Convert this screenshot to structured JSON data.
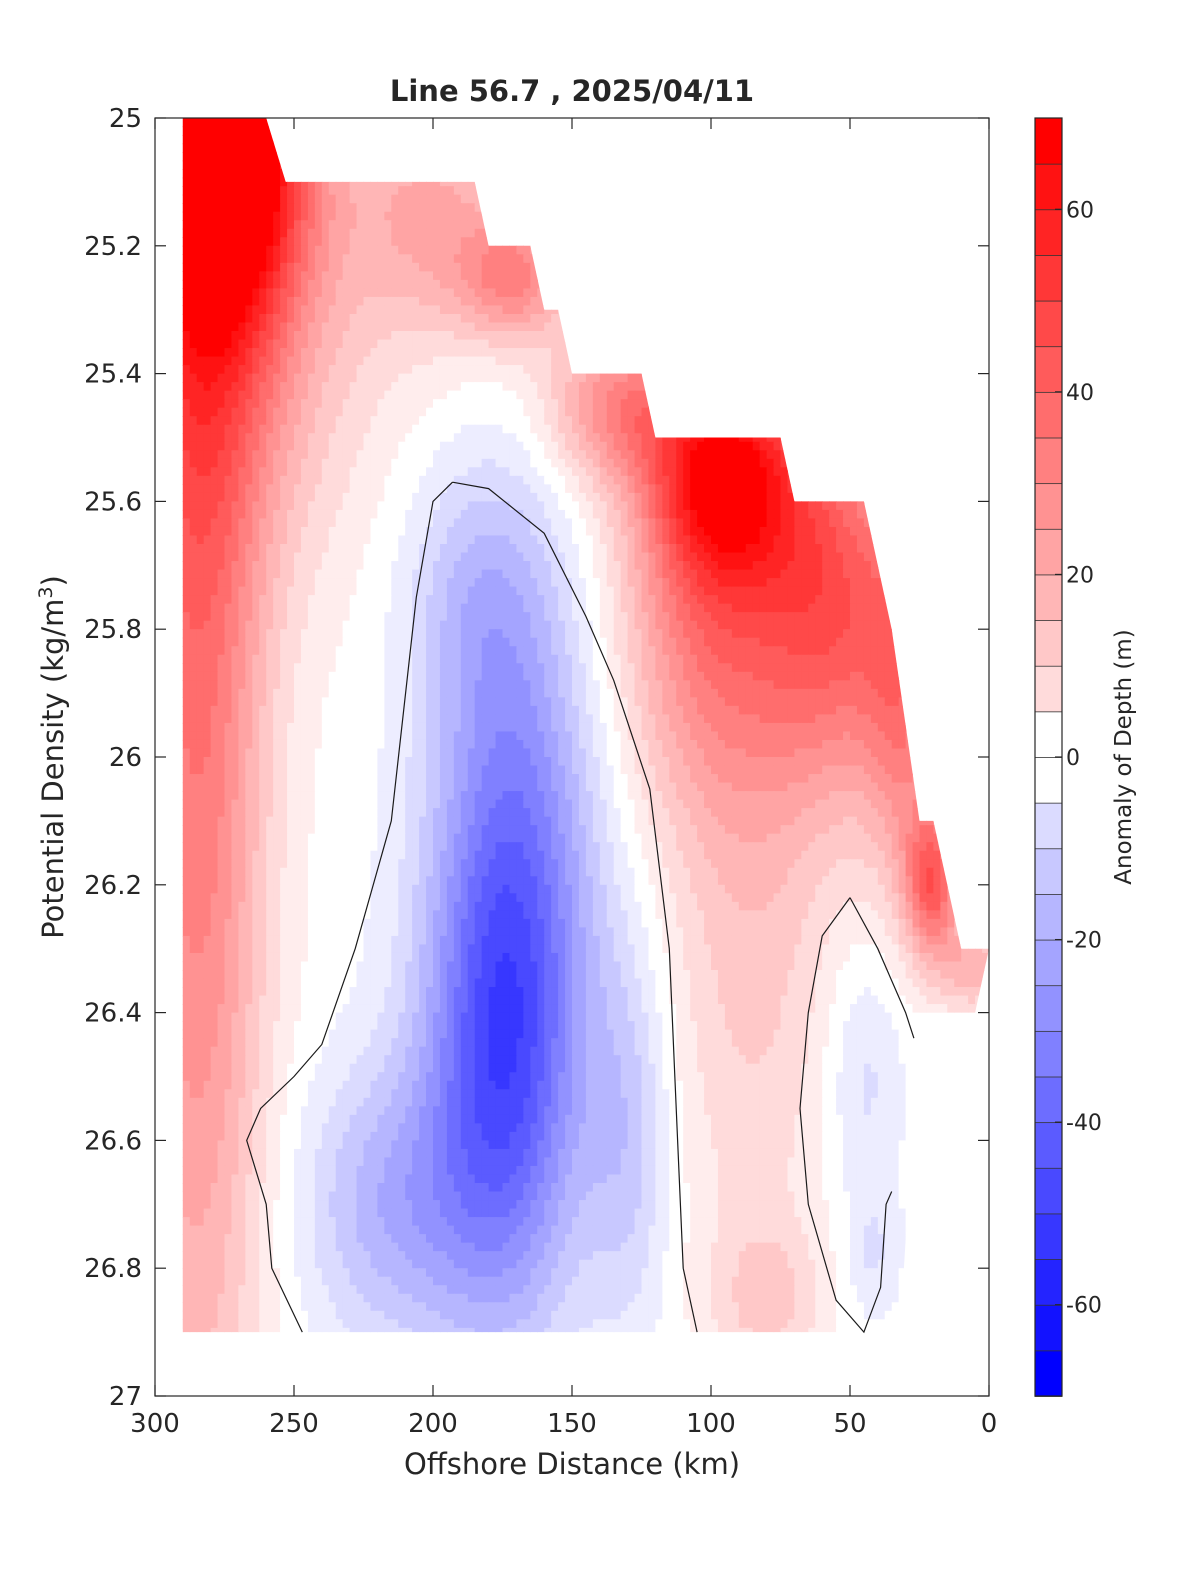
{
  "chart_data": {
    "type": "heatmap",
    "subtype": "filled-contour",
    "title": "Line 56.7 , 2025/04/11",
    "xlabel": "Offshore Distance (km)",
    "ylabel_main": "Potential Density (kg/m",
    "ylabel_sup": "3",
    "ylabel_close": ")",
    "colorbar_label": "Anomaly of Depth (m)",
    "xlim": [
      300,
      0
    ],
    "ylim": [
      25,
      27
    ],
    "y_reversed": true,
    "x_ticks": [
      300,
      250,
      200,
      150,
      100,
      50,
      0
    ],
    "x_tick_labels": [
      "300",
      "250",
      "200",
      "150",
      "100",
      "50",
      "0"
    ],
    "y_ticks": [
      25,
      25.2,
      25.4,
      25.6,
      25.8,
      26,
      26.2,
      26.4,
      26.6,
      26.8,
      27
    ],
    "y_tick_labels": [
      "25",
      "25.2",
      "25.4",
      "25.6",
      "25.8",
      "26",
      "26.2",
      "26.4",
      "26.6",
      "26.8",
      "27"
    ],
    "colorbar_range": [
      -70,
      70
    ],
    "colorbar_step": 5,
    "colorbar_ticks": [
      60,
      40,
      20,
      0,
      -20,
      -40,
      -60
    ],
    "colorbar_tick_labels": [
      "60",
      "40",
      "20",
      "0",
      "-20",
      "-40",
      "-60"
    ],
    "colormap": {
      "negative": "#0000ff",
      "zero": "#ffffff",
      "positive": "#ff0000"
    },
    "data_top_boundary": [
      [
        290,
        25.0
      ],
      [
        260,
        25.0
      ],
      [
        253,
        25.1
      ],
      [
        185,
        25.1
      ],
      [
        180,
        25.2
      ],
      [
        165,
        25.2
      ],
      [
        160,
        25.3
      ],
      [
        155,
        25.3
      ],
      [
        150,
        25.4
      ],
      [
        125,
        25.4
      ],
      [
        120,
        25.5
      ],
      [
        75,
        25.5
      ],
      [
        70,
        25.6
      ],
      [
        45,
        25.6
      ],
      [
        35,
        25.8
      ],
      [
        25,
        26.1
      ],
      [
        20,
        26.1
      ],
      [
        10,
        26.3
      ],
      [
        0,
        26.3
      ],
      [
        5,
        26.4
      ],
      [
        25,
        26.4
      ],
      [
        32,
        26.9
      ],
      [
        290,
        26.9
      ]
    ],
    "anomaly_features": [
      {
        "x": 274,
        "y": 25.05,
        "value": 68,
        "spread_x": 28,
        "spread_y": 0.25
      },
      {
        "x": 285,
        "y": 25.8,
        "value": 38,
        "spread_x": 25,
        "spread_y": 1.3
      },
      {
        "x": 270,
        "y": 25.3,
        "value": 25,
        "spread_x": 45,
        "spread_y": 0.4
      },
      {
        "x": 200,
        "y": 25.15,
        "value": 22,
        "spread_x": 30,
        "spread_y": 0.2
      },
      {
        "x": 170,
        "y": 25.25,
        "value": 30,
        "spread_x": 20,
        "spread_y": 0.1
      },
      {
        "x": 135,
        "y": 25.45,
        "value": 28,
        "spread_x": 25,
        "spread_y": 0.12
      },
      {
        "x": 95,
        "y": 25.55,
        "value": 58,
        "spread_x": 28,
        "spread_y": 0.18
      },
      {
        "x": 98,
        "y": 25.8,
        "value": 32,
        "spread_x": 35,
        "spread_y": 0.3
      },
      {
        "x": 55,
        "y": 25.75,
        "value": 38,
        "spread_x": 25,
        "spread_y": 0.3
      },
      {
        "x": 30,
        "y": 25.9,
        "value": 30,
        "spread_x": 15,
        "spread_y": 0.3
      },
      {
        "x": 20,
        "y": 26.2,
        "value": 40,
        "spread_x": 10,
        "spread_y": 0.12
      },
      {
        "x": 5,
        "y": 26.33,
        "value": 20,
        "spread_x": 12,
        "spread_y": 0.07
      },
      {
        "x": 85,
        "y": 26.3,
        "value": 14,
        "spread_x": 30,
        "spread_y": 0.5
      },
      {
        "x": 80,
        "y": 26.85,
        "value": 12,
        "spread_x": 20,
        "spread_y": 0.12
      },
      {
        "x": 175,
        "y": 26.5,
        "value": -40,
        "spread_x": 28,
        "spread_y": 0.4
      },
      {
        "x": 170,
        "y": 26.1,
        "value": -26,
        "spread_x": 30,
        "spread_y": 0.45
      },
      {
        "x": 185,
        "y": 25.75,
        "value": -12,
        "spread_x": 25,
        "spread_y": 0.2
      },
      {
        "x": 215,
        "y": 26.7,
        "value": -20,
        "spread_x": 32,
        "spread_y": 0.22
      },
      {
        "x": 130,
        "y": 26.6,
        "value": -14,
        "spread_x": 15,
        "spread_y": 0.3
      },
      {
        "x": 45,
        "y": 26.5,
        "value": -10,
        "spread_x": 14,
        "spread_y": 0.2
      },
      {
        "x": 42,
        "y": 26.78,
        "value": -8,
        "spread_x": 10,
        "spread_y": 0.1
      }
    ],
    "zero_contours": [
      [
        [
          193,
          25.57
        ],
        [
          180,
          25.58
        ],
        [
          160,
          25.65
        ],
        [
          145,
          25.78
        ],
        [
          135,
          25.88
        ],
        [
          122,
          26.05
        ],
        [
          115,
          26.3
        ],
        [
          112,
          26.6
        ],
        [
          110,
          26.8
        ],
        [
          105,
          26.9
        ]
      ],
      [
        [
          193,
          25.57
        ],
        [
          200,
          25.6
        ],
        [
          206,
          25.75
        ],
        [
          215,
          26.1
        ],
        [
          228,
          26.3
        ],
        [
          240,
          26.45
        ],
        [
          250,
          26.5
        ],
        [
          262,
          26.55
        ],
        [
          267,
          26.6
        ],
        [
          260,
          26.7
        ],
        [
          258,
          26.8
        ],
        [
          247,
          26.9
        ]
      ],
      [
        [
          50,
          26.22
        ],
        [
          60,
          26.28
        ],
        [
          65,
          26.4
        ],
        [
          68,
          26.55
        ],
        [
          65,
          26.7
        ],
        [
          55,
          26.85
        ],
        [
          45,
          26.9
        ],
        [
          39,
          26.83
        ],
        [
          37,
          26.7
        ],
        [
          35,
          26.68
        ]
      ],
      [
        [
          50,
          26.22
        ],
        [
          40,
          26.3
        ],
        [
          30,
          26.4
        ],
        [
          27,
          26.44
        ]
      ]
    ]
  }
}
